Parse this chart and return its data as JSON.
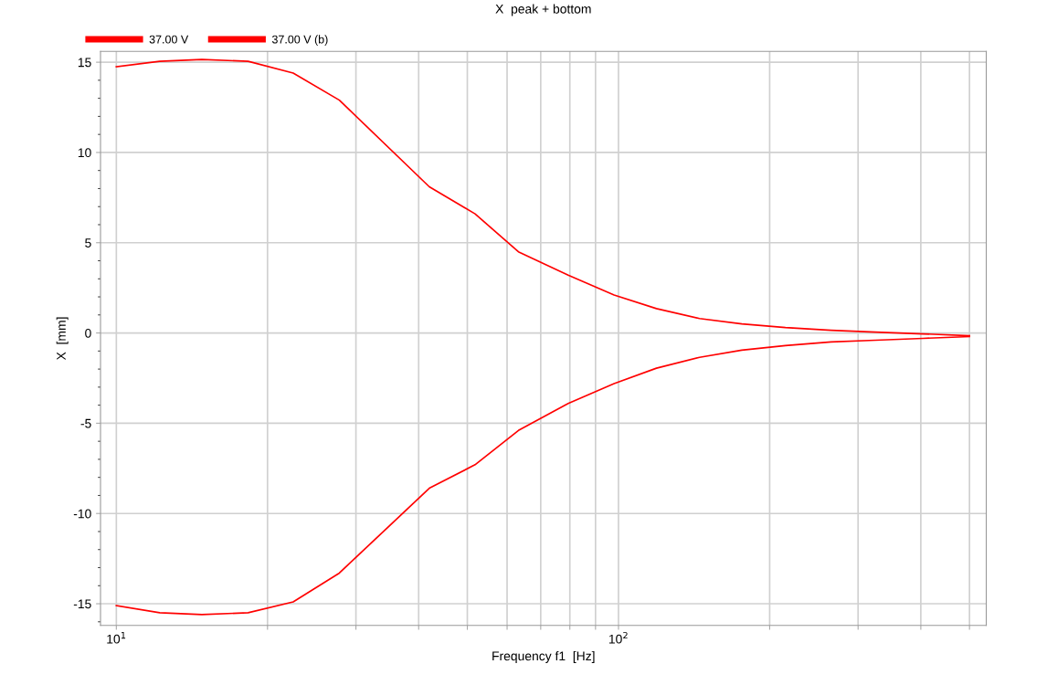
{
  "chart_data": {
    "type": "line",
    "title": "X  peak + bottom",
    "xlabel": "Frequency f1  [Hz]",
    "ylabel": "X  [mm]",
    "x": [
      10,
      12.2,
      14.8,
      18.3,
      22.5,
      27.8,
      42,
      51.8,
      63.2,
      79.4,
      98,
      119,
      145,
      176,
      215,
      265,
      325,
      404,
      500
    ],
    "series": [
      {
        "name": "37.00 V",
        "color": "#ff0000",
        "values": [
          14.75,
          15.05,
          15.15,
          15.05,
          14.4,
          12.9,
          8.1,
          6.6,
          4.5,
          3.2,
          2.1,
          1.35,
          0.8,
          0.5,
          0.3,
          0.15,
          0.05,
          -0.05,
          -0.15
        ]
      },
      {
        "name": "37.00 V (b)",
        "color": "#ff0000",
        "values": [
          -15.1,
          -15.5,
          -15.6,
          -15.5,
          -14.9,
          -13.3,
          -8.6,
          -7.3,
          -5.4,
          -3.9,
          -2.8,
          -1.95,
          -1.35,
          -0.95,
          -0.7,
          -0.5,
          -0.4,
          -0.3,
          -0.2
        ]
      }
    ],
    "log": "x",
    "xlim": [
      9.3,
      540
    ],
    "ylim": [
      -16.2,
      15.6
    ],
    "xticks": [
      {
        "value": 10,
        "label": "10$^{1}$"
      },
      {
        "value": 20,
        "label": null
      },
      {
        "value": 30,
        "label": null
      },
      {
        "value": 40,
        "label": null
      },
      {
        "value": 50,
        "label": null
      },
      {
        "value": 60,
        "label": null
      },
      {
        "value": 70,
        "label": null
      },
      {
        "value": 80,
        "label": null
      },
      {
        "value": 90,
        "label": null
      },
      {
        "value": 100,
        "label": "10$^{2}$"
      },
      {
        "value": 200,
        "label": null
      },
      {
        "value": 300,
        "label": null
      },
      {
        "value": 400,
        "label": null
      },
      {
        "value": 500,
        "label": null
      }
    ],
    "yticks": [
      -15,
      -10,
      -5,
      0,
      5,
      10,
      15
    ],
    "grid": true,
    "legend": "top left",
    "line_style": "solid",
    "marker": "none"
  }
}
